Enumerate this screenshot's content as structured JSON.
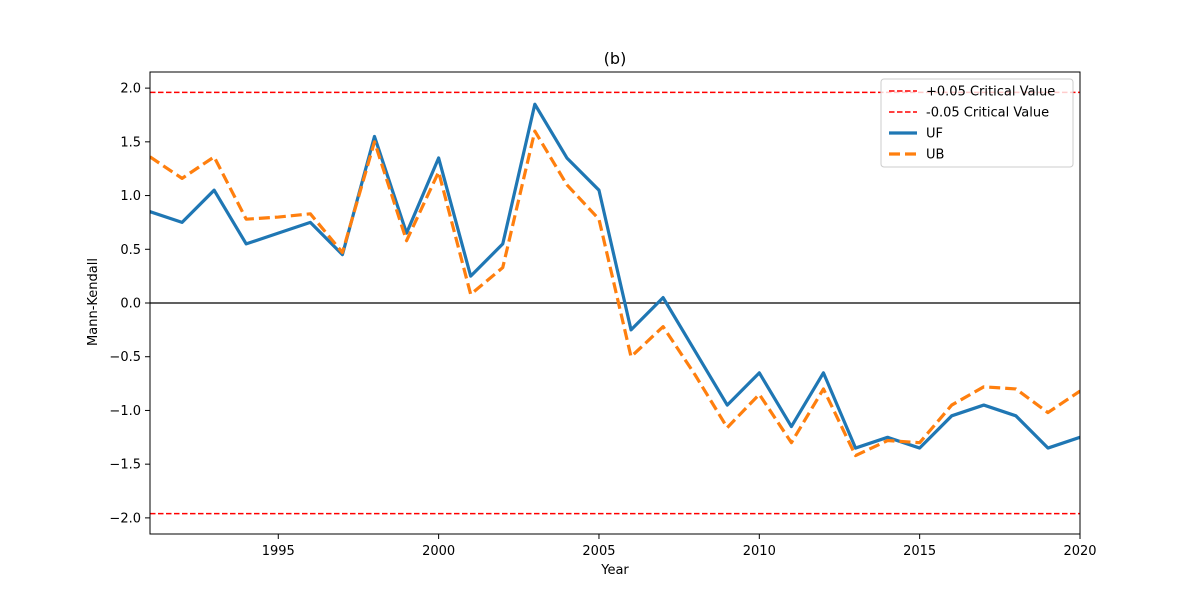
{
  "chart_data": {
    "type": "line",
    "title": "(b)",
    "xlabel": "Year",
    "ylabel": "Mann-Kendall",
    "xlim": [
      1991,
      2020
    ],
    "ylim": [
      -2.15,
      2.15
    ],
    "xticks": [
      1995,
      2000,
      2005,
      2010,
      2015,
      2020
    ],
    "yticks": [
      -2.0,
      -1.5,
      -1.0,
      -0.5,
      0.0,
      0.5,
      1.0,
      1.5,
      2.0
    ],
    "x": [
      1991,
      1992,
      1993,
      1994,
      1995,
      1996,
      1997,
      1998,
      1999,
      2000,
      2001,
      2002,
      2003,
      2004,
      2005,
      2006,
      2007,
      2008,
      2009,
      2010,
      2011,
      2012,
      2013,
      2014,
      2015,
      2016,
      2017,
      2018,
      2019,
      2020
    ],
    "series": [
      {
        "name": "UF",
        "color": "#1f77b4",
        "style": "solid",
        "values": [
          0.85,
          0.75,
          1.05,
          0.55,
          0.65,
          0.75,
          0.45,
          1.55,
          0.65,
          1.35,
          0.25,
          0.55,
          1.85,
          1.35,
          1.05,
          -0.25,
          0.05,
          -0.45,
          -0.95,
          -0.65,
          -1.15,
          -0.65,
          -1.35,
          -1.25,
          -1.35,
          -1.05,
          -0.95,
          -1.05,
          -1.35,
          -1.25
        ]
      },
      {
        "name": "UB",
        "color": "#ff7f0e",
        "style": "dashed",
        "values": [
          1.36,
          1.16,
          1.36,
          0.78,
          0.8,
          0.83,
          0.47,
          1.5,
          0.58,
          1.22,
          0.08,
          0.33,
          1.6,
          1.1,
          0.78,
          -0.5,
          -0.22,
          -0.67,
          -1.16,
          -0.85,
          -1.3,
          -0.8,
          -1.42,
          -1.28,
          -1.3,
          -0.95,
          -0.78,
          -0.8,
          -1.02,
          -0.82
        ]
      }
    ],
    "reference_lines": [
      {
        "name": "+0.05 Critical Value",
        "y": 1.96,
        "color": "#ff0000",
        "style": "dashed"
      },
      {
        "name": "-0.05 Critical Value",
        "y": -1.96,
        "color": "#ff0000",
        "style": "dashed"
      },
      {
        "y": 0.0,
        "color": "#000000",
        "style": "solid"
      }
    ],
    "legend": {
      "placement": "top-right",
      "entries": [
        "+0.05 Critical Value",
        "-0.05 Critical Value",
        "UF",
        "UB"
      ]
    },
    "grid": false
  }
}
